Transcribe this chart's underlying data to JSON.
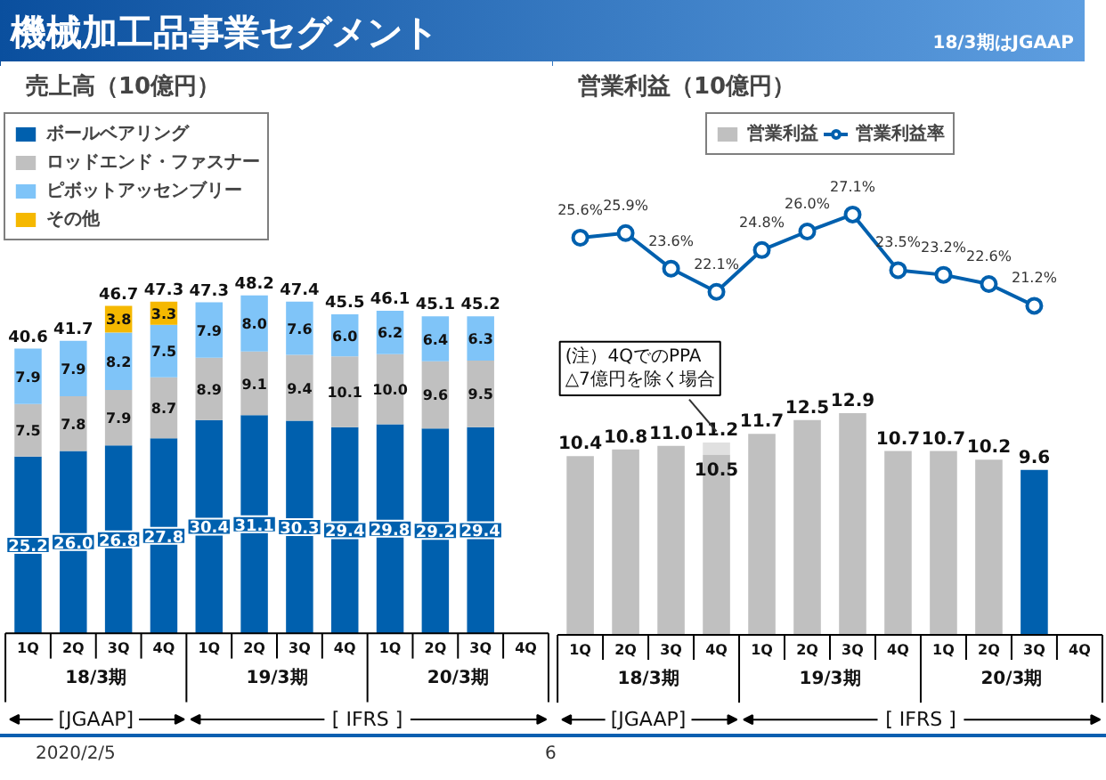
{
  "chart_data": [
    {
      "type": "bar",
      "title": "売上高（10億円）",
      "stacked": true,
      "legend": "top left",
      "categories": [
        "1Q",
        "2Q",
        "3Q",
        "4Q",
        "1Q",
        "2Q",
        "3Q",
        "4Q",
        "1Q",
        "2Q",
        "3Q",
        "4Q"
      ],
      "series": [
        {
          "name": "ボールベアリング",
          "color": "#0060ae",
          "values": [
            25.2,
            26.0,
            26.8,
            27.8,
            30.4,
            31.1,
            30.3,
            29.4,
            29.8,
            29.2,
            29.4,
            null
          ],
          "value_labels": [
            "25.2",
            "26.0",
            "26.8",
            "27.8",
            "30.4",
            "31.1",
            "30.3",
            "29.4",
            "29.8",
            "29.2",
            "29.4",
            null
          ]
        },
        {
          "name": "ロッドエンド・ファスナー",
          "color": "#c0c0c0",
          "values": [
            7.5,
            7.8,
            7.9,
            8.7,
            8.9,
            9.1,
            9.4,
            10.1,
            10.0,
            9.6,
            9.5,
            null
          ],
          "value_labels": [
            "7.5",
            "7.8",
            "7.9",
            "8.7",
            "8.9",
            "9.1",
            "9.4",
            "10.1",
            "10.0",
            "9.6",
            "9.5",
            null
          ]
        },
        {
          "name": "ピボットアッセンブリー",
          "color": "#7fc4f8",
          "values": [
            7.9,
            7.9,
            8.2,
            7.5,
            7.9,
            8.0,
            7.6,
            6.0,
            6.2,
            6.4,
            6.3,
            null
          ],
          "value_labels": [
            "7.9",
            "7.9",
            "8.2",
            "7.5",
            "7.9",
            "8.0",
            "7.6",
            "6.0",
            "6.2",
            "6.4",
            "6.3",
            null
          ]
        },
        {
          "name": "その他",
          "color": "#f5b800",
          "values": [
            null,
            null,
            3.8,
            3.3,
            null,
            null,
            null,
            null,
            null,
            null,
            null,
            null
          ],
          "value_labels": [
            null,
            null,
            "3.8",
            "3.3",
            null,
            null,
            null,
            null,
            null,
            null,
            null,
            null
          ]
        }
      ],
      "totals": [
        "40.6",
        "41.7",
        "46.7",
        "47.3",
        "47.3",
        "48.2",
        "47.4",
        "45.5",
        "46.1",
        "45.1",
        "45.2",
        null
      ],
      "annotations": [
        "機械加工品事業セグメント",
        "18/3期はJGAAP",
        "2020/2/5",
        "6",
        "18/3期",
        "19/3期",
        "20/3期",
        "[JGAAP]",
        "[ IFRS ]"
      ]
    },
    {
      "type": "line",
      "title": "営業利益（10億円）",
      "legend": "top",
      "marker": "circle",
      "categories": [
        null,
        null,
        null,
        null,
        null,
        null,
        null,
        null,
        null,
        null,
        null,
        null
      ],
      "series": [
        {
          "name": "営業利益率",
          "color": "#0060ae",
          "values": [
            25.6,
            25.9,
            23.6,
            22.1,
            24.8,
            26.0,
            27.1,
            23.5,
            23.2,
            22.6,
            21.2,
            null
          ],
          "value_labels": [
            "25.6%",
            "25.9%",
            "23.6%",
            "22.1%",
            "24.8%",
            "26.0%",
            "27.1%",
            "23.5%",
            "23.2%",
            "22.6%",
            "21.2%",
            null
          ]
        }
      ]
    },
    {
      "type": "bar",
      "stacked": true,
      "categories": [
        "1Q",
        "2Q",
        "3Q",
        "4Q",
        "1Q",
        "2Q",
        "3Q",
        "4Q",
        "1Q",
        "2Q",
        "3Q",
        "4Q"
      ],
      "series": [
        {
          "name": "営業利益",
          "color": "#c0c0c0",
          "colors": [
            "#c0c0c0",
            "#c0c0c0",
            "#c0c0c0",
            "#c0c0c0",
            "#c0c0c0",
            "#c0c0c0",
            "#c0c0c0",
            "#c0c0c0",
            "#c0c0c0",
            "#c0c0c0",
            "#0060ae",
            "#0060ae"
          ],
          "values": [
            10.4,
            10.8,
            11.0,
            10.5,
            11.7,
            12.5,
            12.9,
            10.7,
            10.7,
            10.2,
            9.6,
            null
          ],
          "value_labels": [
            "10.4",
            "10.8",
            "11.0",
            "10.5",
            "11.7",
            "12.5",
            "12.9",
            "10.7",
            "10.7",
            "10.2",
            "9.6",
            null
          ]
        },
        {
          "color": "#e0e0e0",
          "values": [
            null,
            null,
            null,
            0.7,
            null,
            null,
            null,
            null,
            null,
            null,
            null,
            null
          ]
        }
      ],
      "totals": [
        null,
        null,
        null,
        "11.2",
        null,
        null,
        null,
        null,
        null,
        null,
        null,
        null
      ],
      "annotations": [
        "18/3期",
        "19/3期",
        "20/3期",
        "[JGAAP]",
        "[ IFRS ]",
        "(注）4QでのPPA\n△7億円を除く場合"
      ]
    }
  ]
}
